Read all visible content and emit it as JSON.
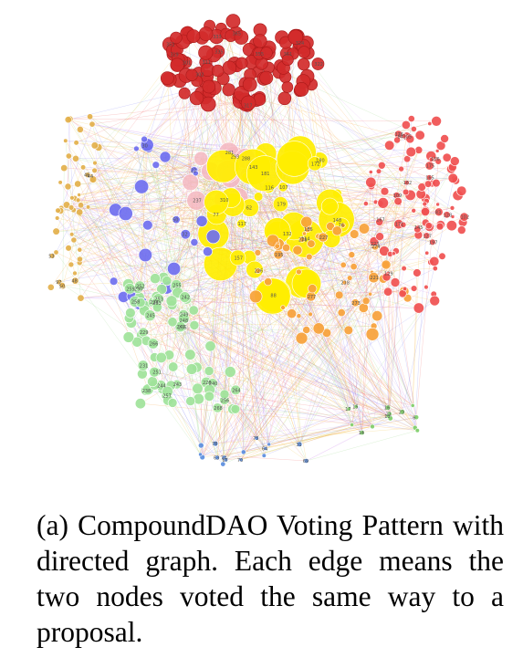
{
  "figure": {
    "caption": "(a) CompoundDAO Voting Pattern with directed graph. Each edge means the two nodes voted the same way to a proposal."
  },
  "clusters": [
    {
      "name": "dark-red",
      "color": "#d32b2b",
      "labels": [
        "322",
        "319",
        "333",
        "351",
        "302",
        "301",
        "311",
        "317",
        "361",
        "355",
        "335",
        "324",
        "365"
      ]
    },
    {
      "name": "pink",
      "color": "#f4b8c2",
      "labels": [
        "293",
        "281",
        "310",
        "237",
        "288"
      ]
    },
    {
      "name": "yellow",
      "color": "#ffee00",
      "labels": [
        "116",
        "180",
        "117",
        "77",
        "107",
        "132",
        "148",
        "76",
        "88",
        "143",
        "181",
        "179",
        "172",
        "157",
        "114",
        "62"
      ]
    },
    {
      "name": "orange",
      "color": "#f7a23a",
      "labels": [
        "186",
        "195",
        "274",
        "277",
        "273",
        "223",
        "218",
        "226",
        "227",
        "278",
        "221"
      ]
    },
    {
      "name": "red",
      "color": "#f05050",
      "labels": [
        "162",
        "167",
        "171",
        "175",
        "197",
        "165",
        "106",
        "105",
        "84",
        "102",
        "129",
        "128",
        "127",
        "109",
        "83",
        "176",
        "145"
      ]
    },
    {
      "name": "blue",
      "color": "#6f6ff0",
      "labels": [
        "22",
        "30",
        "32",
        "50"
      ]
    },
    {
      "name": "tan",
      "color": "#e3b04b",
      "labels": [
        "97",
        "44",
        "46",
        "48",
        "53",
        "50"
      ]
    },
    {
      "name": "green",
      "color": "#9fe39a",
      "labels": [
        "226",
        "240",
        "248",
        "249",
        "255",
        "257",
        "258",
        "236",
        "247",
        "229",
        "224",
        "230",
        "238",
        "242",
        "243",
        "244",
        "245",
        "251",
        "252",
        "253",
        "256",
        "231",
        "264",
        "263",
        "268",
        "266",
        "259"
      ]
    },
    {
      "name": "green-edges",
      "color": "#7fcf6a",
      "labels": [
        "21",
        "16",
        "14",
        "6",
        "17",
        "23",
        "13",
        "15"
      ]
    },
    {
      "name": "blue-bottom",
      "color": "#5b8ee0",
      "labels": [
        "31",
        "69",
        "70",
        "75",
        "63",
        "67",
        "74",
        "64",
        "78"
      ]
    }
  ]
}
